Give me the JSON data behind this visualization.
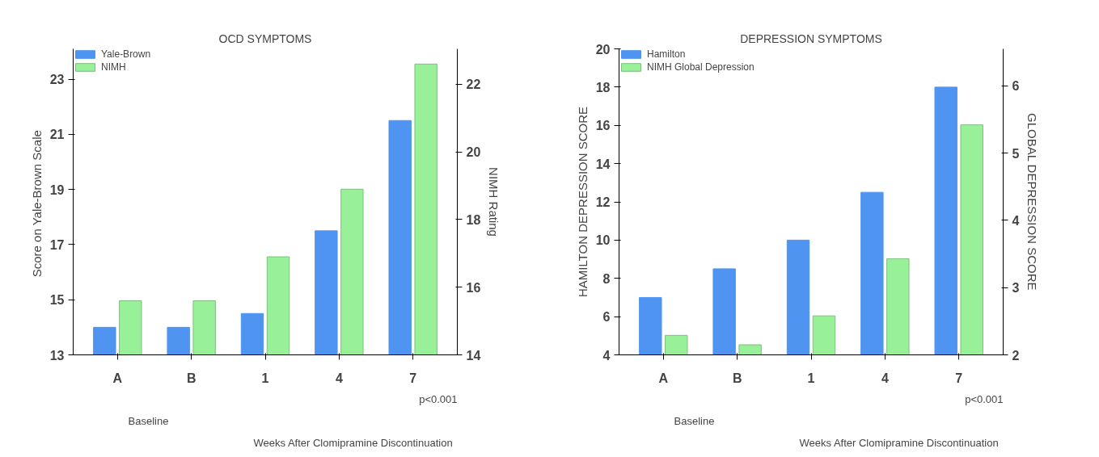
{
  "chart_data": [
    {
      "type": "bar",
      "title": "OCD SYMPTOMS",
      "categories": [
        "A",
        "B",
        "1",
        "4",
        "7"
      ],
      "ylabel": "Score on  Yale-Brown Scale",
      "y2label": "NIMH Rating",
      "ylim": [
        13,
        24.1
      ],
      "yticks": [
        13,
        15,
        17,
        19,
        21,
        23
      ],
      "y2lim": [
        14,
        23.05
      ],
      "y2ticks": [
        14,
        16,
        18,
        20,
        22
      ],
      "grid": false,
      "legend": "top left",
      "series": [
        {
          "name": "Yale-Brown",
          "color": "#4f94f0",
          "values": [
            14,
            14,
            14.5,
            17.5,
            21.5
          ]
        },
        {
          "name": "NIMH",
          "color": "#98f098",
          "axis": "y2",
          "values": [
            15.6,
            15.6,
            16.9,
            18.9,
            22.6
          ]
        }
      ],
      "annotations": [
        "p<0.001",
        "Baseline",
        "Weeks After Clomipramine Discontinuation"
      ]
    },
    {
      "type": "bar",
      "title": "DEPRESSION SYMPTOMS",
      "categories": [
        "A",
        "B",
        "1",
        "4",
        "7"
      ],
      "ylabel": "HAMILTON DEPRESSION SCORE",
      "y2label": "GLOBAL DEPRESSION SCORE",
      "ylim": [
        4,
        20
      ],
      "yticks": [
        4,
        6,
        8,
        10,
        12,
        14,
        16,
        18,
        20
      ],
      "y2lim": [
        2,
        6.55
      ],
      "y2ticks": [
        2,
        3,
        4,
        5,
        6
      ],
      "grid": false,
      "legend": "top left",
      "series": [
        {
          "name": "Hamilton",
          "color": "#4f94f0",
          "values": [
            7,
            8.5,
            10,
            12.5,
            18
          ]
        },
        {
          "name": "NIMH Global Depression",
          "color": "#98f098",
          "axis": "y2",
          "values": [
            2.29,
            2.15,
            2.58,
            3.43,
            5.42
          ]
        }
      ],
      "annotations": [
        "p<0.001",
        "Baseline",
        "Weeks After Clomipramine Discontinuation"
      ]
    }
  ]
}
